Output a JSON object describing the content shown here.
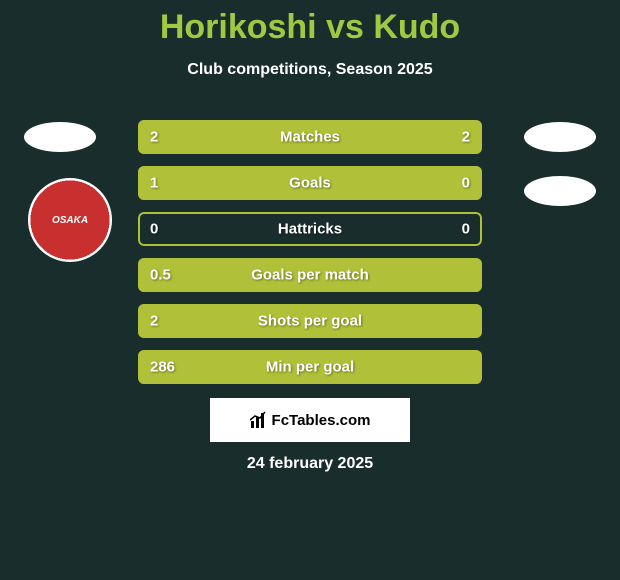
{
  "title": "Horikoshi vs Kudo",
  "subtitle": "Club competitions, Season 2025",
  "date": "24 february 2025",
  "branding_text": "FcTables.com",
  "colors": {
    "background": "#1a2d2d",
    "title_color": "#a0c840",
    "bar_color": "#b0c038",
    "text_color": "#ffffff",
    "badge_bg": "#ffffff",
    "club_badge_bg": "#c83030"
  },
  "club_badge_text": "OSAKA",
  "stats": [
    {
      "label": "Matches",
      "left_val": "2",
      "right_val": "2",
      "left_pct": 50,
      "right_pct": 50
    },
    {
      "label": "Goals",
      "left_val": "1",
      "right_val": "0",
      "left_pct": 78,
      "right_pct": 22
    },
    {
      "label": "Hattricks",
      "left_val": "0",
      "right_val": "0",
      "left_pct": 0,
      "right_pct": 0
    },
    {
      "label": "Goals per match",
      "left_val": "0.5",
      "right_val": "",
      "left_pct": 100,
      "right_pct": 0
    },
    {
      "label": "Shots per goal",
      "left_val": "2",
      "right_val": "",
      "left_pct": 100,
      "right_pct": 0
    },
    {
      "label": "Min per goal",
      "left_val": "286",
      "right_val": "",
      "left_pct": 100,
      "right_pct": 0
    }
  ]
}
